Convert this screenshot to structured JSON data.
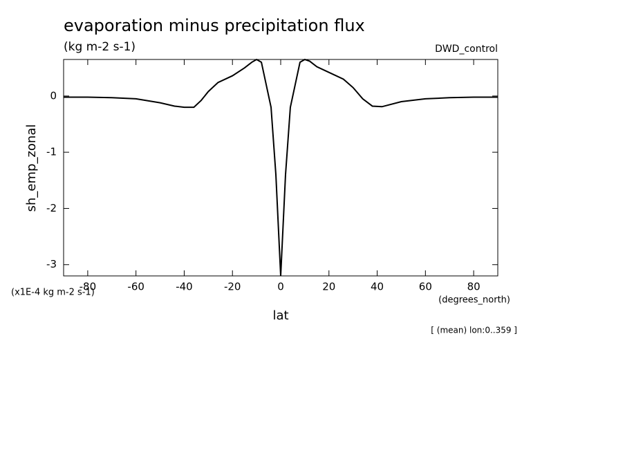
{
  "chart_data": {
    "type": "line",
    "title": "evaporation minus precipitation flux",
    "subtitle": "(kg m-2 s-1)",
    "dataset_label": "DWD_control",
    "y_label": "sh_emp_zonal",
    "y_units": "(x1E-4 kg m-2 s-1)",
    "x_units": "(degrees_north)",
    "x_label": "lat",
    "annotation": "[ (mean) lon:0..359 ]",
    "x": [
      -90,
      -80,
      -70,
      -60,
      -50,
      -44,
      -40,
      -36,
      -33,
      -30,
      -26,
      -20,
      -15,
      -12,
      -10,
      -8,
      -6,
      -4,
      -2,
      0,
      2,
      4,
      6,
      8,
      10,
      12,
      15,
      20,
      26,
      30,
      34,
      38,
      42,
      50,
      60,
      70,
      80,
      90
    ],
    "values": [
      -0.02,
      -0.02,
      -0.03,
      -0.05,
      -0.12,
      -0.18,
      -0.2,
      -0.2,
      -0.08,
      0.08,
      0.24,
      0.36,
      0.5,
      0.6,
      0.65,
      0.6,
      0.2,
      -0.2,
      -1.4,
      -3.2,
      -1.4,
      -0.2,
      0.2,
      0.6,
      0.65,
      0.62,
      0.52,
      0.42,
      0.3,
      0.15,
      -0.05,
      -0.18,
      -0.19,
      -0.1,
      -0.05,
      -0.03,
      -0.02,
      -0.02
    ],
    "color": "#000000",
    "xlim": [
      -90,
      90
    ],
    "xticks": [
      -80,
      -60,
      -40,
      -20,
      0,
      20,
      40,
      60,
      80
    ],
    "ylim": [
      -3.2,
      0.65
    ],
    "yticks": [
      -3,
      -2,
      -1,
      0
    ]
  }
}
